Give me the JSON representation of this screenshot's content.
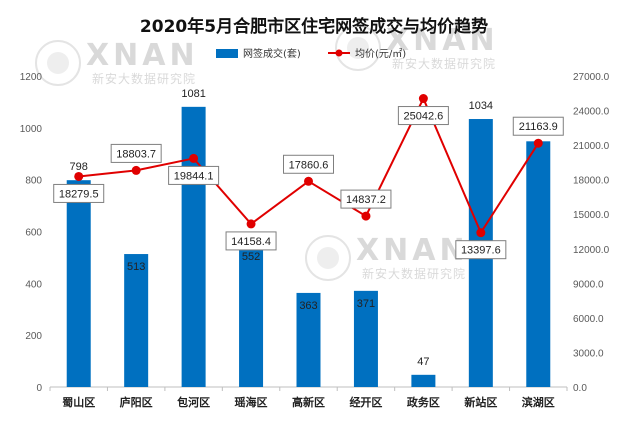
{
  "chart_data": {
    "type": "bar+line",
    "title": "2020年5月合肥市区住宅网签成交与均价趋势",
    "categories": [
      "蜀山区",
      "庐阳区",
      "包河区",
      "瑶海区",
      "高新区",
      "经开区",
      "政务区",
      "新站区",
      "滨湖区"
    ],
    "series": [
      {
        "name": "网签成交(套)",
        "type": "bar",
        "axis": "left",
        "color": "#0070c0",
        "values": [
          798,
          513,
          1081,
          552,
          363,
          371,
          47,
          1034,
          948
        ],
        "labels": [
          "798",
          "513",
          "1081",
          "552",
          "363",
          "371",
          "47",
          "1034",
          "948"
        ]
      },
      {
        "name": "均价(元/㎡)",
        "type": "line",
        "axis": "right",
        "color": "#e00000",
        "values": [
          18279.5,
          18803.7,
          19844.1,
          14158.4,
          17860.6,
          14837.2,
          25042.6,
          13397.6,
          21163.9
        ],
        "labels": [
          "18279.5",
          "18803.7",
          "19844.1",
          "14158.4",
          "17860.6",
          "14837.2",
          "25042.6",
          "13397.6",
          "21163.9"
        ]
      }
    ],
    "y_left": {
      "min": 0,
      "max": 1200,
      "ticks": [
        "0",
        "200",
        "400",
        "600",
        "800",
        "1000",
        "1200"
      ]
    },
    "y_right": {
      "min": 0,
      "max": 27000,
      "ticks": [
        "0.0",
        "3000.0",
        "6000.0",
        "9000.0",
        "12000.0",
        "15000.0",
        "18000.0",
        "21000.0",
        "24000.0",
        "27000.0"
      ]
    },
    "legend_position": "top-center",
    "grid": false
  },
  "watermark": {
    "brand": "XNAN",
    "name": "新安大数据研究院"
  }
}
